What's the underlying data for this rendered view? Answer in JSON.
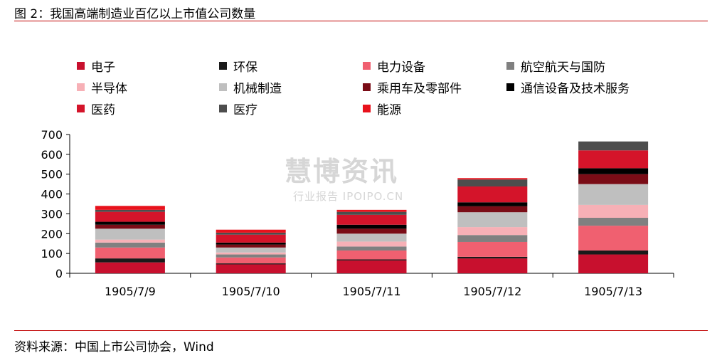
{
  "header": {
    "title": "图 2：我国高端制造业百亿以上市值公司数量"
  },
  "footer": {
    "source": "资料来源：中国上市公司协会，Wind"
  },
  "watermark": {
    "line1": "慧博资讯",
    "line2": "行业报告 IPOIPO.CN"
  },
  "colors": {
    "电子": "#c8102e",
    "环保": "#1a1a1a",
    "电力设备": "#f06070",
    "航空航天与国防": "#808080",
    "半导体": "#f7b0b6",
    "机械制造": "#bfbfbf",
    "乘用车及零部件": "#7a0c16",
    "通信设备及技术服务": "#000000",
    "医药": "#d4142a",
    "医疗": "#4d4d4d",
    "能源": "#e8121c",
    "axis": "#000000"
  },
  "chart_data": {
    "type": "bar",
    "stacked": true,
    "categories": [
      "1905/7/9",
      "1905/7/10",
      "1905/7/11",
      "1905/7/12",
      "1905/7/13"
    ],
    "ylim": [
      0,
      700
    ],
    "yticks": [
      "0",
      "100",
      "200",
      "300",
      "400",
      "500",
      "600",
      "700"
    ],
    "grid": false,
    "legend_position": "top",
    "series": [
      {
        "name": "电子",
        "values": [
          55,
          45,
          65,
          75,
          95
        ]
      },
      {
        "name": "环保",
        "values": [
          20,
          5,
          5,
          8,
          20
        ]
      },
      {
        "name": "电力设备",
        "values": [
          55,
          30,
          45,
          75,
          125
        ]
      },
      {
        "name": "航空航天与国防",
        "values": [
          25,
          15,
          20,
          35,
          40
        ]
      },
      {
        "name": "半导体",
        "values": [
          15,
          10,
          25,
          40,
          65
        ]
      },
      {
        "name": "机械制造",
        "values": [
          55,
          25,
          40,
          75,
          105
        ]
      },
      {
        "name": "乘用车及零部件",
        "values": [
          20,
          15,
          25,
          30,
          50
        ]
      },
      {
        "name": "通信设备及技术服务",
        "values": [
          15,
          10,
          20,
          20,
          30
        ]
      },
      {
        "name": "医药",
        "values": [
          50,
          40,
          50,
          80,
          90
        ]
      },
      {
        "name": "医疗",
        "values": [
          10,
          10,
          15,
          35,
          45
        ]
      },
      {
        "name": "能源",
        "values": [
          20,
          15,
          10,
          7,
          0
        ]
      }
    ]
  }
}
